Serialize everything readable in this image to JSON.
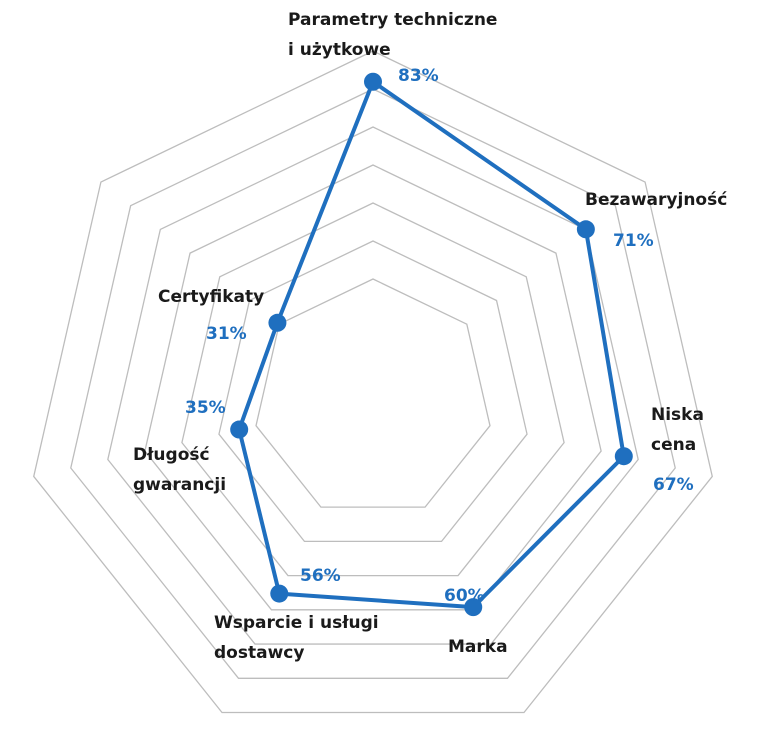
{
  "chart_data": {
    "type": "radar",
    "title": "",
    "axes": [
      {
        "label_lines": [
          "Parametry techniczne",
          "i użytkowe"
        ],
        "value": 83,
        "value_label": "83%"
      },
      {
        "label_lines": [
          "Bezawaryjność"
        ],
        "value": 71,
        "value_label": "71%"
      },
      {
        "label_lines": [
          "Niska",
          "cena"
        ],
        "value": 67,
        "value_label": "67%"
      },
      {
        "label_lines": [
          "Marka"
        ],
        "value": 60,
        "value_label": "60%"
      },
      {
        "label_lines": [
          "Wsparcie i usługi",
          "dostawcy"
        ],
        "value": 56,
        "value_label": "56%"
      },
      {
        "label_lines": [
          "Długość",
          "gwarancji"
        ],
        "value": 35,
        "value_label": "35%"
      },
      {
        "label_lines": [
          "Certyfikaty"
        ],
        "value": 31,
        "value_label": "31%"
      }
    ],
    "rlim": [
      -1.6,
      91.2
    ],
    "grid": true,
    "series_color": "#1f6fbf",
    "grid_color": "#bdbdbd"
  }
}
